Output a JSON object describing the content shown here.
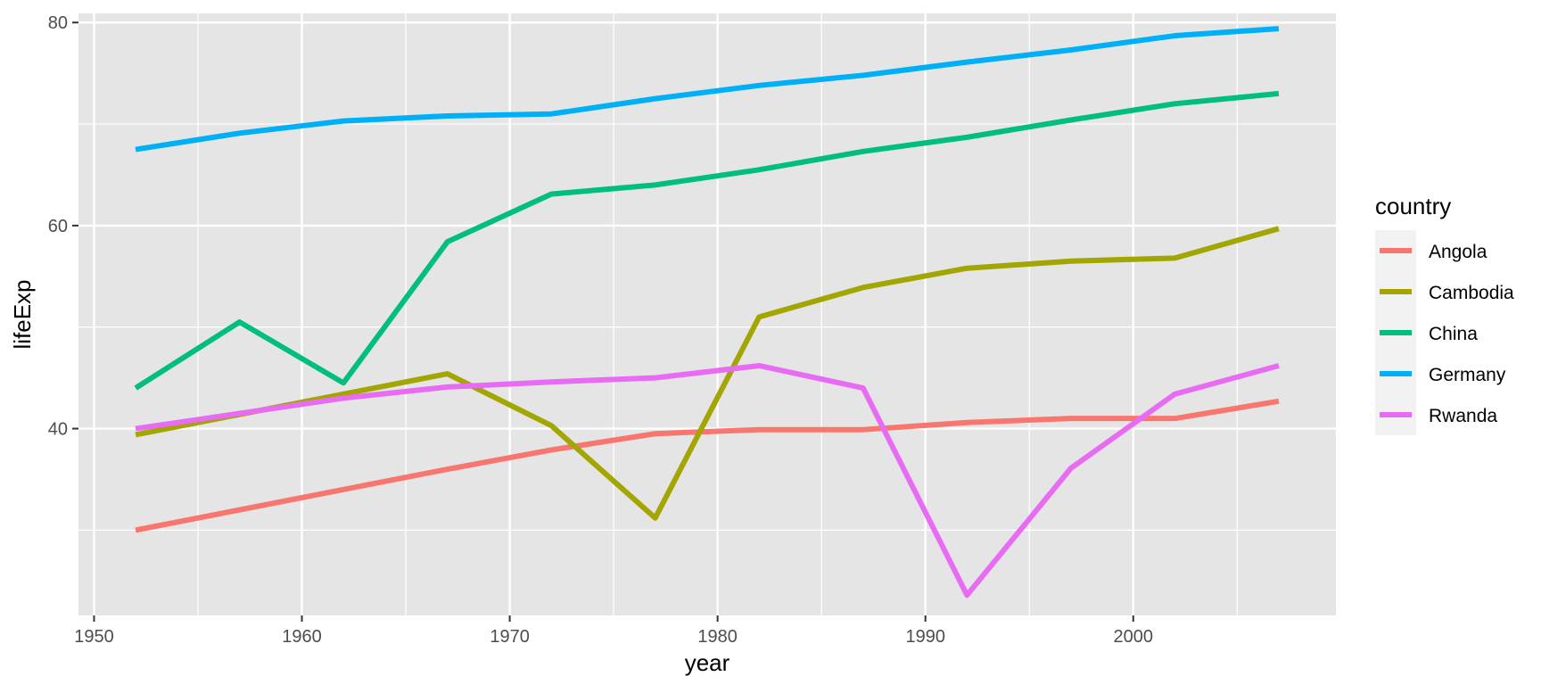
{
  "chart_data": {
    "type": "line",
    "xlabel": "year",
    "ylabel": "lifeExp",
    "xlim": [
      1949.25,
      2009.75
    ],
    "ylim": [
      21.6,
      80.9
    ],
    "x_ticks": [
      1950,
      1960,
      1970,
      1980,
      1990,
      2000
    ],
    "x_tick_labels": [
      "1950",
      "1960",
      "1970",
      "1980",
      "1990",
      "2000"
    ],
    "x_minor_ticks": [
      1955,
      1965,
      1975,
      1985,
      1995,
      2005
    ],
    "y_ticks": [
      40,
      60,
      80
    ],
    "y_tick_labels": [
      "40",
      "60",
      "80"
    ],
    "y_minor_ticks": [
      30,
      50,
      70
    ],
    "grid": true,
    "panel_background": "#e5e5e5",
    "legend": {
      "title": "country",
      "placement": "right"
    },
    "x": [
      1952,
      1957,
      1962,
      1967,
      1972,
      1977,
      1982,
      1987,
      1992,
      1997,
      2002,
      2007
    ],
    "series": [
      {
        "name": "Angola",
        "color": "#F8766D",
        "values": [
          30.0,
          32.0,
          34.0,
          36.0,
          37.9,
          39.5,
          39.9,
          39.9,
          40.6,
          41.0,
          41.0,
          42.7
        ]
      },
      {
        "name": "Cambodia",
        "color": "#A3A500",
        "values": [
          39.4,
          41.4,
          43.4,
          45.4,
          40.3,
          31.2,
          51.0,
          53.9,
          55.8,
          56.5,
          56.8,
          59.7
        ]
      },
      {
        "name": "China",
        "color": "#00BF7D",
        "values": [
          44.0,
          50.5,
          44.5,
          58.4,
          63.1,
          64.0,
          65.5,
          67.3,
          68.7,
          70.4,
          72.0,
          73.0
        ]
      },
      {
        "name": "Germany",
        "color": "#00B0F6",
        "values": [
          67.5,
          69.1,
          70.3,
          70.8,
          71.0,
          72.5,
          73.8,
          74.8,
          76.1,
          77.3,
          78.7,
          79.4
        ]
      },
      {
        "name": "Rwanda",
        "color": "#E76BF3",
        "values": [
          40.0,
          41.5,
          43.0,
          44.1,
          44.6,
          45.0,
          46.2,
          44.0,
          23.6,
          36.1,
          43.4,
          46.2
        ]
      }
    ]
  }
}
